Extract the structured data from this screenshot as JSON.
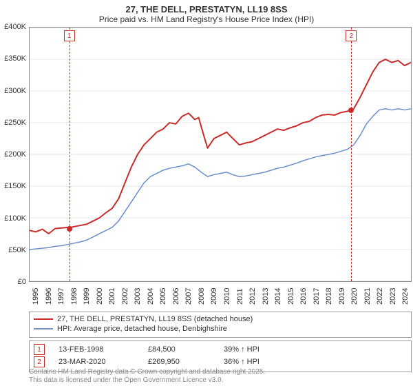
{
  "title": "27, THE DELL, PRESTATYN, LL19 8SS",
  "subtitle": "Price paid vs. HM Land Registry's House Price Index (HPI)",
  "chart": {
    "type": "line",
    "background_color": "#ffffff",
    "axis_color": "#888888",
    "grid_color": "#cccccc",
    "font_size_axis": 11,
    "ylim": [
      0,
      400000
    ],
    "ytick_step": 50000,
    "y_ticks": [
      "£0",
      "£50K",
      "£100K",
      "£150K",
      "£200K",
      "£250K",
      "£300K",
      "£350K",
      "£400K"
    ],
    "xlim": [
      1995,
      2025
    ],
    "x_ticks": [
      1995,
      1996,
      1997,
      1998,
      1999,
      2000,
      2001,
      2002,
      2003,
      2004,
      2005,
      2006,
      2007,
      2008,
      2009,
      2010,
      2011,
      2012,
      2013,
      2014,
      2015,
      2016,
      2017,
      2018,
      2019,
      2020,
      2021,
      2022,
      2023,
      2024
    ],
    "series": [
      {
        "key": "property",
        "label": "27, THE DELL, PRESTATYN, LL19 8SS (detached house)",
        "color": "#c92a2a",
        "line_width": 2,
        "data": [
          [
            1995,
            80000
          ],
          [
            1995.5,
            78000
          ],
          [
            1996,
            82000
          ],
          [
            1996.5,
            75000
          ],
          [
            1997,
            83000
          ],
          [
            1997.5,
            84000
          ],
          [
            1998,
            85000
          ],
          [
            1998.12,
            84500
          ],
          [
            1998.5,
            86000
          ],
          [
            1999,
            88000
          ],
          [
            1999.5,
            90000
          ],
          [
            2000,
            95000
          ],
          [
            2000.5,
            100000
          ],
          [
            2001,
            108000
          ],
          [
            2001.5,
            115000
          ],
          [
            2002,
            130000
          ],
          [
            2002.5,
            155000
          ],
          [
            2003,
            180000
          ],
          [
            2003.5,
            200000
          ],
          [
            2004,
            215000
          ],
          [
            2004.5,
            225000
          ],
          [
            2005,
            235000
          ],
          [
            2005.5,
            240000
          ],
          [
            2006,
            250000
          ],
          [
            2006.5,
            248000
          ],
          [
            2007,
            260000
          ],
          [
            2007.5,
            265000
          ],
          [
            2008,
            255000
          ],
          [
            2008.3,
            258000
          ],
          [
            2008.7,
            230000
          ],
          [
            2009,
            210000
          ],
          [
            2009.5,
            225000
          ],
          [
            2010,
            230000
          ],
          [
            2010.5,
            235000
          ],
          [
            2011,
            225000
          ],
          [
            2011.5,
            215000
          ],
          [
            2012,
            218000
          ],
          [
            2012.5,
            220000
          ],
          [
            2013,
            225000
          ],
          [
            2013.5,
            230000
          ],
          [
            2014,
            235000
          ],
          [
            2014.5,
            240000
          ],
          [
            2015,
            238000
          ],
          [
            2015.5,
            242000
          ],
          [
            2016,
            245000
          ],
          [
            2016.5,
            250000
          ],
          [
            2017,
            252000
          ],
          [
            2017.5,
            258000
          ],
          [
            2018,
            262000
          ],
          [
            2018.5,
            263000
          ],
          [
            2019,
            262000
          ],
          [
            2019.5,
            266000
          ],
          [
            2020,
            268000
          ],
          [
            2020.22,
            269950
          ],
          [
            2020.5,
            272000
          ],
          [
            2021,
            290000
          ],
          [
            2021.5,
            310000
          ],
          [
            2022,
            330000
          ],
          [
            2022.5,
            345000
          ],
          [
            2023,
            350000
          ],
          [
            2023.5,
            345000
          ],
          [
            2024,
            348000
          ],
          [
            2024.5,
            340000
          ],
          [
            2025,
            345000
          ]
        ]
      },
      {
        "key": "hpi",
        "label": "HPI: Average price, detached house, Denbighshire",
        "color": "#6a8ec9",
        "line_width": 1.5,
        "data": [
          [
            1995,
            50000
          ],
          [
            1995.5,
            51000
          ],
          [
            1996,
            52000
          ],
          [
            1996.5,
            53000
          ],
          [
            1997,
            55000
          ],
          [
            1997.5,
            56000
          ],
          [
            1998,
            58000
          ],
          [
            1998.5,
            60000
          ],
          [
            1999,
            62000
          ],
          [
            1999.5,
            65000
          ],
          [
            2000,
            70000
          ],
          [
            2000.5,
            75000
          ],
          [
            2001,
            80000
          ],
          [
            2001.5,
            85000
          ],
          [
            2002,
            95000
          ],
          [
            2002.5,
            110000
          ],
          [
            2003,
            125000
          ],
          [
            2003.5,
            140000
          ],
          [
            2004,
            155000
          ],
          [
            2004.5,
            165000
          ],
          [
            2005,
            170000
          ],
          [
            2005.5,
            175000
          ],
          [
            2006,
            178000
          ],
          [
            2006.5,
            180000
          ],
          [
            2007,
            182000
          ],
          [
            2007.5,
            185000
          ],
          [
            2008,
            180000
          ],
          [
            2008.5,
            172000
          ],
          [
            2009,
            165000
          ],
          [
            2009.5,
            168000
          ],
          [
            2010,
            170000
          ],
          [
            2010.5,
            172000
          ],
          [
            2011,
            168000
          ],
          [
            2011.5,
            165000
          ],
          [
            2012,
            166000
          ],
          [
            2012.5,
            168000
          ],
          [
            2013,
            170000
          ],
          [
            2013.5,
            172000
          ],
          [
            2014,
            175000
          ],
          [
            2014.5,
            178000
          ],
          [
            2015,
            180000
          ],
          [
            2015.5,
            183000
          ],
          [
            2016,
            186000
          ],
          [
            2016.5,
            190000
          ],
          [
            2017,
            193000
          ],
          [
            2017.5,
            196000
          ],
          [
            2018,
            198000
          ],
          [
            2018.5,
            200000
          ],
          [
            2019,
            202000
          ],
          [
            2019.5,
            205000
          ],
          [
            2020,
            208000
          ],
          [
            2020.5,
            215000
          ],
          [
            2021,
            230000
          ],
          [
            2021.5,
            248000
          ],
          [
            2022,
            260000
          ],
          [
            2022.5,
            270000
          ],
          [
            2023,
            272000
          ],
          [
            2023.5,
            270000
          ],
          [
            2024,
            272000
          ],
          [
            2024.5,
            270000
          ],
          [
            2025,
            272000
          ]
        ]
      }
    ],
    "markers": [
      {
        "n": "1",
        "x": 1998.12,
        "y": 84500,
        "color": "#c92a2a",
        "date": "13-FEB-1998",
        "price": "£84,500",
        "pct": "39% ↑ HPI"
      },
      {
        "n": "2",
        "x": 2020.22,
        "y": 269950,
        "color": "#c92a2a",
        "date": "23-MAR-2020",
        "price": "£269,950",
        "pct": "36% ↑ HPI"
      }
    ]
  },
  "legend": {
    "border_color": "#999999",
    "font_size": 11
  },
  "footer_line1": "Contains HM Land Registry data © Crown copyright and database right 2025.",
  "footer_line2": "This data is licensed under the Open Government Licence v3.0."
}
